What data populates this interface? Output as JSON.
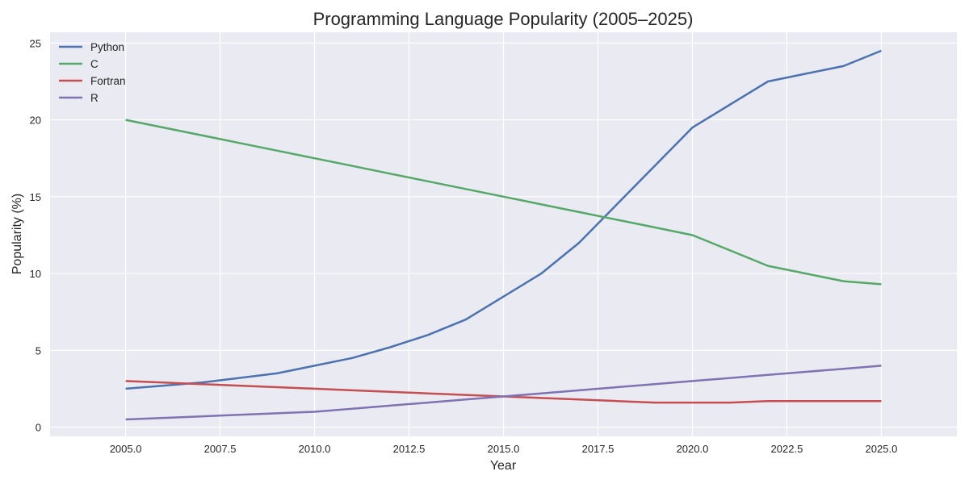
{
  "chart_data": {
    "type": "line",
    "title": "Programming Language Popularity (2005–2025)",
    "xlabel": "Year",
    "ylabel": "Popularity (%)",
    "xlim": [
      2003.0,
      2027.0
    ],
    "ylim": [
      -0.6,
      25.7
    ],
    "xticks": [
      2005.0,
      2007.5,
      2010.0,
      2012.5,
      2015.0,
      2017.5,
      2020.0,
      2022.5,
      2025.0
    ],
    "xtick_labels": [
      "2005.0",
      "2007.5",
      "2010.0",
      "2012.5",
      "2015.0",
      "2017.5",
      "2020.0",
      "2022.5",
      "2025.0"
    ],
    "yticks": [
      0,
      5,
      10,
      15,
      20,
      25
    ],
    "ytick_labels": [
      "0",
      "5",
      "10",
      "15",
      "20",
      "25"
    ],
    "grid": true,
    "legend_position": "top-left",
    "x": [
      2005,
      2006,
      2007,
      2008,
      2009,
      2010,
      2011,
      2012,
      2013,
      2014,
      2015,
      2016,
      2017,
      2018,
      2019,
      2020,
      2021,
      2022,
      2023,
      2024,
      2025
    ],
    "series": [
      {
        "name": "Python",
        "color": "#4c72b0",
        "values": [
          2.5,
          2.7,
          2.9,
          3.2,
          3.5,
          4.0,
          4.5,
          5.2,
          6.0,
          7.0,
          8.5,
          10.0,
          12.0,
          14.5,
          17.0,
          19.5,
          21.0,
          22.5,
          23.0,
          23.5,
          24.5
        ]
      },
      {
        "name": "C",
        "color": "#55a868",
        "values": [
          20.0,
          19.5,
          19.0,
          18.5,
          18.0,
          17.5,
          17.0,
          16.5,
          16.0,
          15.5,
          15.0,
          14.5,
          14.0,
          13.5,
          13.0,
          12.5,
          11.5,
          10.5,
          10.0,
          9.5,
          9.3
        ]
      },
      {
        "name": "Fortran",
        "color": "#c44e52",
        "values": [
          3.0,
          2.9,
          2.8,
          2.7,
          2.6,
          2.5,
          2.4,
          2.3,
          2.2,
          2.1,
          2.0,
          1.9,
          1.8,
          1.7,
          1.6,
          1.6,
          1.6,
          1.7,
          1.7,
          1.7,
          1.7
        ]
      },
      {
        "name": "R",
        "color": "#8172b2",
        "values": [
          0.5,
          0.6,
          0.7,
          0.8,
          0.9,
          1.0,
          1.2,
          1.4,
          1.6,
          1.8,
          2.0,
          2.2,
          2.4,
          2.6,
          2.8,
          3.0,
          3.2,
          3.4,
          3.6,
          3.8,
          4.0
        ]
      }
    ]
  }
}
